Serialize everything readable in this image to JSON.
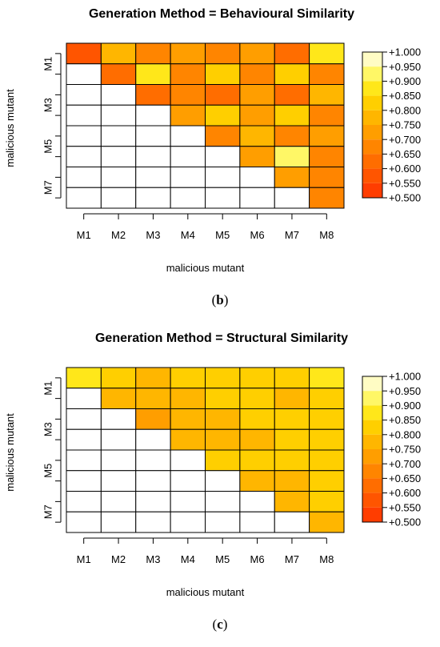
{
  "colorscale": [
    "#ff2600",
    "#ff3d00",
    "#ff5500",
    "#ff6d00",
    "#ff8500",
    "#ff9e00",
    "#ffb600",
    "#ffcf00",
    "#ffe71a",
    "#fff766",
    "#fffcc4"
  ],
  "legend_labels": [
    "+1.000",
    "+0.950",
    "+0.900",
    "+0.850",
    "+0.800",
    "+0.750",
    "+0.700",
    "+0.650",
    "+0.600",
    "+0.550",
    "+0.500"
  ],
  "chart_data": [
    {
      "type": "heatmap",
      "title": "Generation Method = Behavioural Similarity",
      "xlabel": "malicious mutant",
      "ylabel": "malicious mutant",
      "caption": "b",
      "x_ticks": [
        "M1",
        "M2",
        "M3",
        "M4",
        "M5",
        "M6",
        "M7",
        "M8"
      ],
      "y_ticks": [
        "M1",
        "M3",
        "M5",
        "M7"
      ],
      "value_range": [
        0.5,
        1.0
      ],
      "rows": [
        [
          0.64,
          0.84,
          0.72,
          0.77,
          0.72,
          0.75,
          0.7,
          0.93
        ],
        [
          null,
          0.66,
          0.91,
          0.73,
          0.88,
          0.74,
          0.88,
          0.73
        ],
        [
          null,
          null,
          0.68,
          0.73,
          0.69,
          0.76,
          0.68,
          0.84
        ],
        [
          null,
          null,
          null,
          0.78,
          0.89,
          0.75,
          0.89,
          0.73
        ],
        [
          null,
          null,
          null,
          null,
          0.72,
          0.83,
          0.73,
          0.79
        ],
        [
          null,
          null,
          null,
          null,
          null,
          0.79,
          0.98,
          0.73
        ],
        [
          null,
          null,
          null,
          null,
          null,
          null,
          0.79,
          0.71
        ],
        [
          null,
          null,
          null,
          null,
          null,
          null,
          null,
          0.72
        ]
      ]
    },
    {
      "type": "heatmap",
      "title": "Generation Method = Structural Similarity",
      "xlabel": "malicious mutant",
      "ylabel": "malicious mutant",
      "caption": "c",
      "x_ticks": [
        "M1",
        "M2",
        "M3",
        "M4",
        "M5",
        "M6",
        "M7",
        "M8"
      ],
      "y_ticks": [
        "M1",
        "M3",
        "M5",
        "M7"
      ],
      "value_range": [
        0.5,
        1.0
      ],
      "rows": [
        [
          0.9,
          0.89,
          0.85,
          0.86,
          0.86,
          0.88,
          0.88,
          0.9
        ],
        [
          null,
          0.83,
          0.84,
          0.85,
          0.86,
          0.87,
          0.85,
          0.89
        ],
        [
          null,
          null,
          0.78,
          0.85,
          0.85,
          0.86,
          0.86,
          0.89
        ],
        [
          null,
          null,
          null,
          0.8,
          0.81,
          0.85,
          0.86,
          0.89
        ],
        [
          null,
          null,
          null,
          null,
          0.89,
          0.87,
          0.86,
          0.88
        ],
        [
          null,
          null,
          null,
          null,
          null,
          0.84,
          0.84,
          0.87
        ],
        [
          null,
          null,
          null,
          null,
          null,
          null,
          0.84,
          0.88
        ],
        [
          null,
          null,
          null,
          null,
          null,
          null,
          null,
          0.85
        ]
      ]
    }
  ]
}
